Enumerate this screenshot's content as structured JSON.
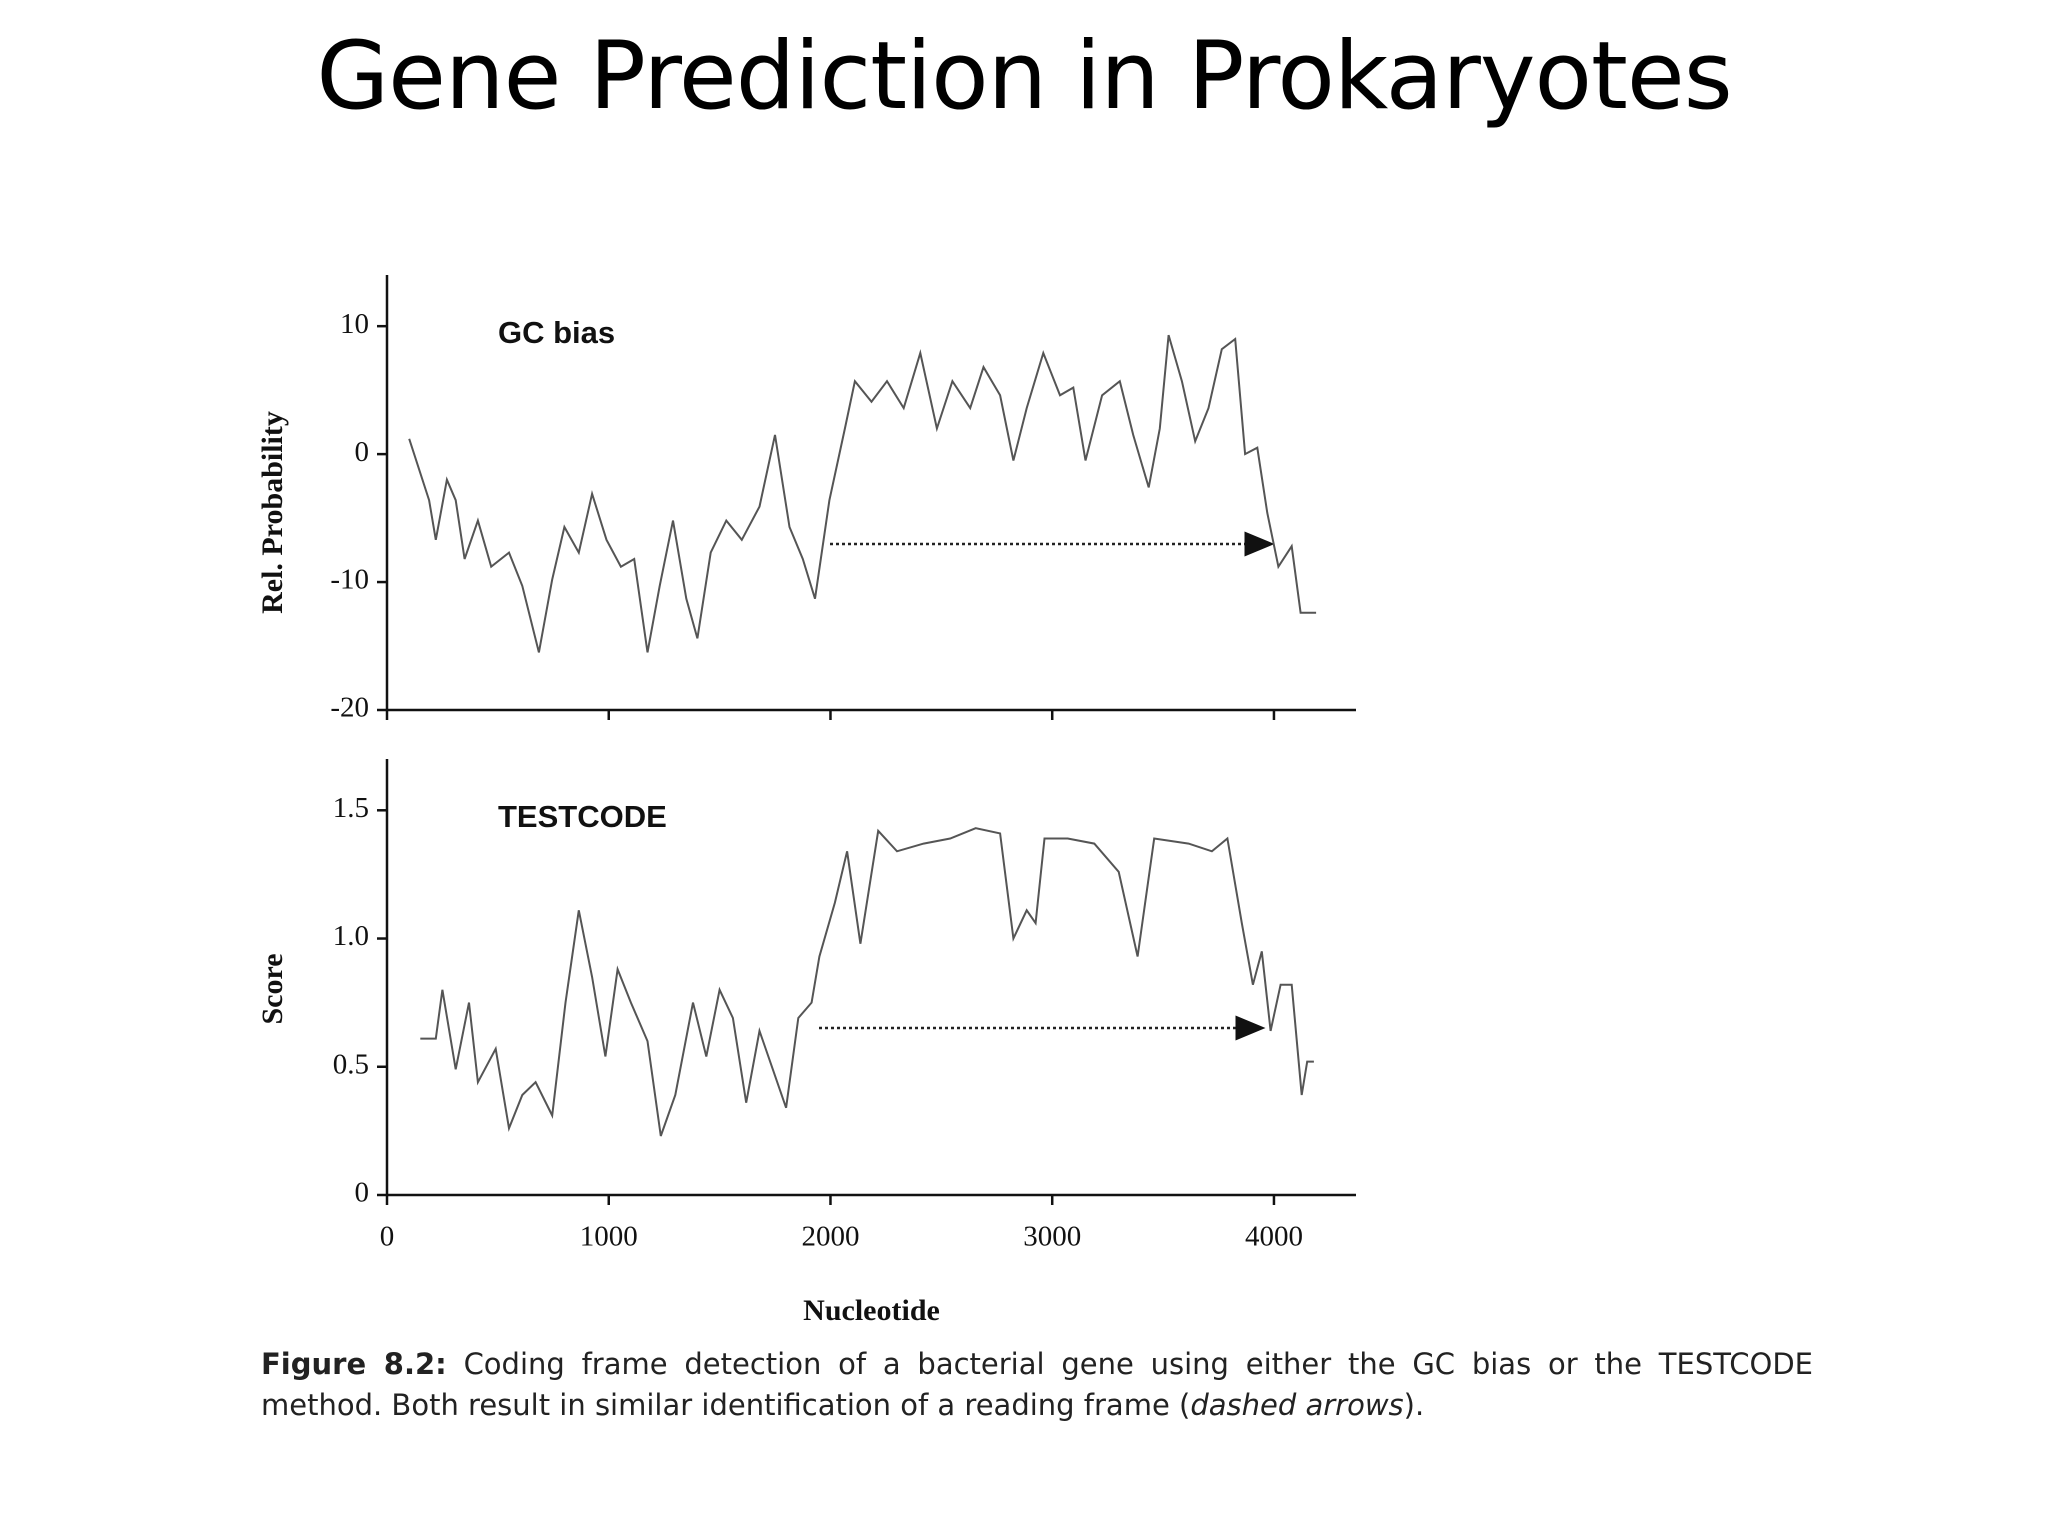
{
  "title": "Gene Prediction in Prokaryotes",
  "caption": {
    "label": "Figure 8.2:",
    "text": "Coding frame detection of a bacterial gene using either the GC bias or the TESTCODE method. Both result in similar identification of a reading frame (",
    "emphasis": "dashed arrows",
    "after": ")."
  },
  "chart_data": [
    {
      "type": "line",
      "panel_label": "GC bias",
      "ylabel": "Rel. Probability",
      "color": "#555555",
      "xlim": [
        0,
        4370
      ],
      "ylim": [
        -20,
        14
      ],
      "yticks": [
        -20,
        -10,
        0,
        10
      ],
      "x": [
        100,
        190,
        220,
        270,
        310,
        350,
        410,
        470,
        550,
        610,
        685,
        745,
        800,
        865,
        925,
        990,
        1055,
        1115,
        1175,
        1230,
        1290,
        1350,
        1400,
        1460,
        1530,
        1600,
        1680,
        1750,
        1815,
        1875,
        1930,
        1995,
        2065,
        2110,
        2185,
        2255,
        2330,
        2405,
        2480,
        2550,
        2630,
        2690,
        2765,
        2825,
        2885,
        2960,
        3035,
        3095,
        3150,
        3225,
        3305,
        3365,
        3435,
        3485,
        3525,
        3585,
        3645,
        3705,
        3765,
        3825,
        3870,
        3925,
        3970,
        4020,
        4080,
        4120,
        4190
      ],
      "values": [
        1.2,
        -3.6,
        -6.7,
        -2,
        -3.6,
        -8.2,
        -5.2,
        -8.8,
        -7.7,
        -10.3,
        -15.5,
        -9.8,
        -5.7,
        -7.7,
        -3.1,
        -6.7,
        -8.8,
        -8.2,
        -15.5,
        -10.3,
        -5.2,
        -11.3,
        -14.4,
        -7.7,
        -5.2,
        -6.7,
        -4.1,
        1.5,
        -5.7,
        -8.2,
        -11.3,
        -3.6,
        2,
        5.7,
        4.1,
        5.7,
        3.6,
        7.9,
        2,
        5.7,
        3.6,
        6.8,
        4.6,
        -0.5,
        3.6,
        7.9,
        4.6,
        5.2,
        -0.5,
        4.6,
        5.7,
        1.5,
        -2.6,
        2,
        9.3,
        5.7,
        1,
        3.6,
        8.2,
        9,
        0,
        0.5,
        -4.6,
        -8.8,
        -7.2,
        -12.4,
        -12.4
      ]
    },
    {
      "type": "line",
      "panel_label": "TESTCODE",
      "ylabel": "Score",
      "xlabel": "Nucleotide",
      "color": "#555555",
      "xlim": [
        0,
        4370
      ],
      "ylim": [
        0,
        1.7
      ],
      "yticks": [
        0,
        0.5,
        {
          "value": 1,
          "label": "1.0"
        },
        1.5
      ],
      "xticks": [
        0,
        1000,
        2000,
        3000,
        4000
      ],
      "x": [
        150,
        220,
        250,
        310,
        370,
        410,
        490,
        550,
        610,
        670,
        745,
        805,
        865,
        925,
        985,
        1040,
        1100,
        1175,
        1235,
        1300,
        1380,
        1440,
        1500,
        1560,
        1620,
        1680,
        1740,
        1800,
        1855,
        1915,
        1950,
        2020,
        2075,
        2135,
        2215,
        2300,
        2420,
        2540,
        2655,
        2765,
        2825,
        2885,
        2925,
        2965,
        3070,
        3190,
        3300,
        3385,
        3460,
        3615,
        3720,
        3790,
        3855,
        3905,
        3945,
        3985,
        4030,
        4080,
        4125,
        4150,
        4180
      ],
      "values": [
        0.61,
        0.61,
        0.8,
        0.49,
        0.75,
        0.44,
        0.57,
        0.26,
        0.39,
        0.44,
        0.31,
        0.75,
        1.11,
        0.85,
        0.54,
        0.88,
        0.75,
        0.6,
        0.23,
        0.39,
        0.75,
        0.54,
        0.8,
        0.69,
        0.36,
        0.64,
        0.49,
        0.34,
        0.69,
        0.75,
        0.93,
        1.14,
        1.34,
        0.98,
        1.42,
        1.34,
        1.37,
        1.39,
        1.43,
        1.41,
        1,
        1.11,
        1.06,
        1.39,
        1.39,
        1.37,
        1.26,
        0.93,
        1.39,
        1.37,
        1.34,
        1.39,
        1.06,
        0.82,
        0.95,
        0.64,
        0.82,
        0.82,
        0.39,
        0.52,
        0.52
      ]
    }
  ]
}
